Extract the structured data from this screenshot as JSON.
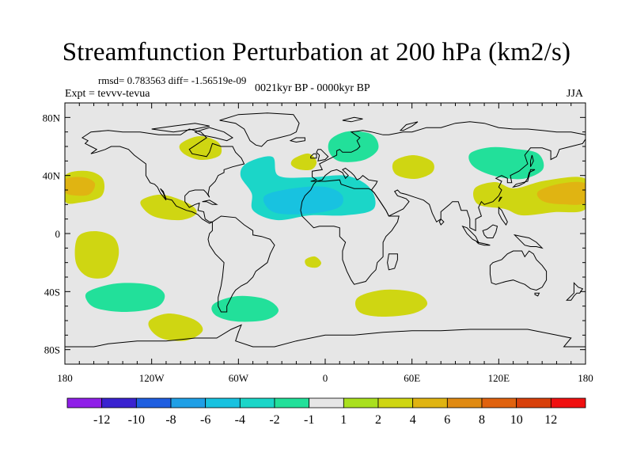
{
  "title": "Streamfunction Perturbation at 200 hPa (km2/s)",
  "stats": "rmsd= 0.783563 diff= -1.56519e-09",
  "experiment": "Expt = tevvv-tevua",
  "period": "0021kyr BP - 0000kyr BP",
  "season": "JJA",
  "chart_data": {
    "type": "contour-map",
    "variable": "Streamfunction perturbation",
    "level": "200 hPa",
    "units": "km2/s",
    "lon_range": [
      -180,
      180
    ],
    "lat_range": [
      -90,
      90
    ],
    "lat_tick_labels": [
      {
        "label": "80N",
        "lat": 80
      },
      {
        "label": "40N",
        "lat": 40
      },
      {
        "label": "0",
        "lat": 0
      },
      {
        "label": "40S",
        "lat": -40
      },
      {
        "label": "80S",
        "lat": -80
      }
    ],
    "lon_tick_labels": [
      {
        "label": "180",
        "lon": -180
      },
      {
        "label": "120W",
        "lon": -120
      },
      {
        "label": "60W",
        "lon": -60
      },
      {
        "label": "0",
        "lon": 0
      },
      {
        "label": "60E",
        "lon": 60
      },
      {
        "label": "120E",
        "lon": 120
      },
      {
        "label": "180",
        "lon": 180
      }
    ],
    "colorbar": {
      "labels": [
        "-12",
        "-10",
        "-8",
        "-6",
        "-4",
        "-2",
        "-1",
        "1",
        "2",
        "4",
        "6",
        "8",
        "10",
        "12"
      ],
      "colors": [
        "#8f1fe8",
        "#3a22d0",
        "#1e5ee0",
        "#1f9fe6",
        "#18c2e0",
        "#1bd6c8",
        "#22e09a",
        "#e6e6e6",
        "#a9e01e",
        "#cfd612",
        "#e0b412",
        "#e08a12",
        "#e0620e",
        "#d8400a",
        "#f01010"
      ]
    },
    "anomaly_regions": [
      {
        "name": "NE Pacific",
        "lon": -165,
        "lat": 30,
        "level": "2"
      },
      {
        "name": "NE Pacific core",
        "lon": -167,
        "lat": 35,
        "level": "4"
      },
      {
        "name": "Hawaii region",
        "lon": -107,
        "lat": 18,
        "level": "2"
      },
      {
        "name": "Hudson Bay",
        "lon": -85,
        "lat": 60,
        "level": "2"
      },
      {
        "name": "Tropical Atlantic",
        "lon": -15,
        "lat": 25,
        "level": "-2"
      },
      {
        "name": "Sahara core",
        "lon": -5,
        "lat": 23,
        "level": "-4"
      },
      {
        "name": "Scandinavia",
        "lon": 25,
        "lat": 60,
        "level": "-1"
      },
      {
        "name": "Europe",
        "lon": -8,
        "lat": 48,
        "level": "2"
      },
      {
        "name": "Central Asia",
        "lon": 60,
        "lat": 48,
        "level": "2"
      },
      {
        "name": "Siberia",
        "lon": 120,
        "lat": 55,
        "level": "-1"
      },
      {
        "name": "W Pacific",
        "lon": 150,
        "lat": 30,
        "level": "2"
      },
      {
        "name": "W Pacific core",
        "lon": 160,
        "lat": 33,
        "level": "4"
      },
      {
        "name": "SE Pacific",
        "lon": -145,
        "lat": -15,
        "level": "2"
      },
      {
        "name": "S Atlantic",
        "lon": -5,
        "lat": -18,
        "level": "2"
      },
      {
        "name": "S Pacific",
        "lon": -145,
        "lat": -55,
        "level": "-1"
      },
      {
        "name": "Southern Ocean Atlantic",
        "lon": -45,
        "lat": -60,
        "level": "-1"
      },
      {
        "name": "Southern Ocean Indian",
        "lon": 45,
        "lat": -56,
        "level": "2"
      },
      {
        "name": "Drake Passage",
        "lon": -110,
        "lat": -73,
        "level": "2"
      }
    ]
  }
}
